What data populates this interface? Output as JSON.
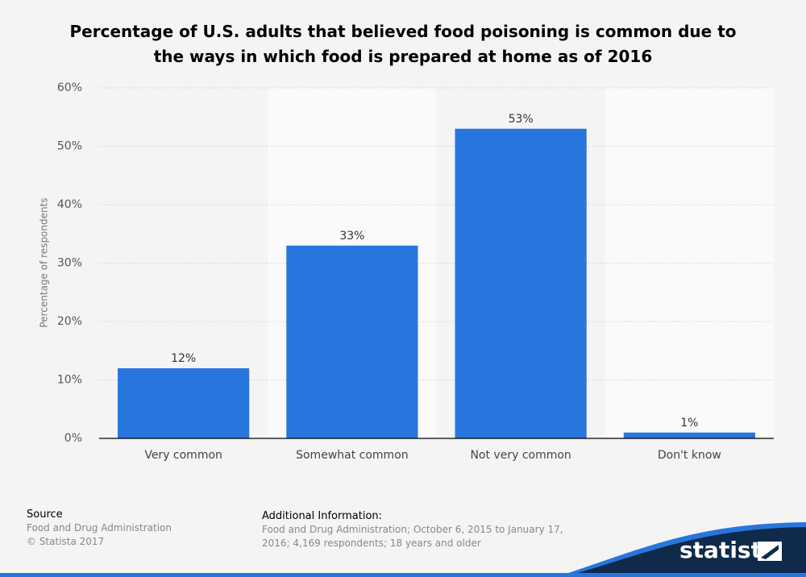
{
  "chart_data": {
    "type": "bar",
    "title": "Percentage of U.S. adults that believed food poisoning is common due to the ways in which food is prepared at home as of 2016",
    "y_label": "Percentage of respondents",
    "categories": [
      "Very common",
      "Somewhat common",
      "Not very common",
      "Don't know"
    ],
    "values": [
      12,
      33,
      53,
      1
    ],
    "value_labels": [
      "12%",
      "33%",
      "53%",
      "1%"
    ],
    "color": "#2876dd",
    "ylim": [
      0,
      60
    ],
    "yticks": [
      {
        "value": 0,
        "label": "0%"
      },
      {
        "value": 10,
        "label": "10%"
      },
      {
        "value": 20,
        "label": "20%"
      },
      {
        "value": 30,
        "label": "30%"
      },
      {
        "value": 40,
        "label": "40%"
      },
      {
        "value": 50,
        "label": "50%"
      },
      {
        "value": 60,
        "label": "60%"
      }
    ],
    "grid": true
  },
  "footer": {
    "source_heading": "Source",
    "source": "Food and Drug Administration",
    "copyright": "© Statista 2017",
    "info_heading": "Additional Information:",
    "info": "Food and Drug Administration; October 6, 2015 to January 17, 2016; 4,169 respondents; 18 years and older",
    "logo": "statista"
  }
}
